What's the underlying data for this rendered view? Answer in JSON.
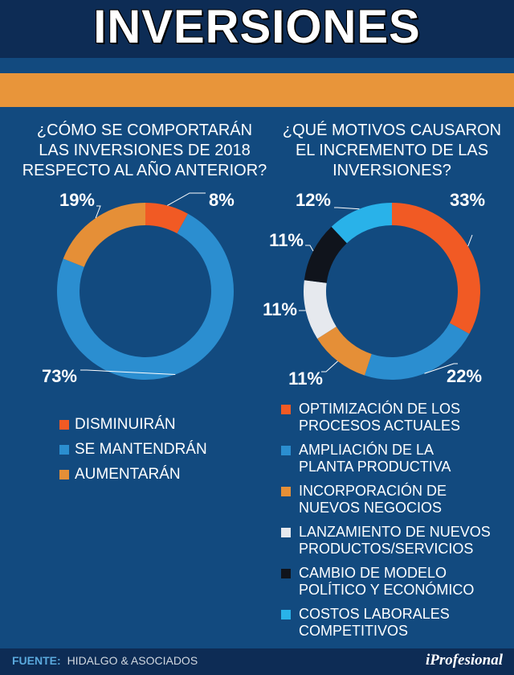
{
  "title": "INVERSIONES",
  "colors": {
    "orange_red": "#f15a24",
    "blue": "#2b8ed0",
    "orange": "#e58f37",
    "light_gray": "#e6e9ee",
    "black": "#10141c",
    "cyan": "#29b2e9",
    "background": "#124a7f",
    "band": "#e8953a"
  },
  "chart_data": [
    {
      "type": "pie",
      "question_lines": [
        "¿CÓMO SE COMPORTARÁN",
        "LAS INVERSIONES DE 2018",
        "RESPECTO AL AÑO ANTERIOR?"
      ],
      "series": [
        {
          "name": "DISMINUIRÁN",
          "value": 8,
          "label": "8%",
          "color": "#f15a24"
        },
        {
          "name": "SE MANTENDRÁN",
          "value": 73,
          "label": "73%",
          "color": "#2b8ed0"
        },
        {
          "name": "AUMENTARÁN",
          "value": 19,
          "label": "19%",
          "color": "#e58f37"
        }
      ]
    },
    {
      "type": "pie",
      "question_lines": [
        "¿QUÉ MOTIVOS CAUSARON",
        "EL INCREMENTO DE LAS",
        "INVERSIONES?"
      ],
      "series": [
        {
          "name_lines": [
            "OPTIMIZACIÓN DE LOS",
            "PROCESOS ACTUALES"
          ],
          "value": 33,
          "label": "33%",
          "color": "#f15a24"
        },
        {
          "name_lines": [
            "AMPLIACIÓN DE LA",
            "PLANTA PRODUCTIVA"
          ],
          "value": 22,
          "label": "22%",
          "color": "#2b8ed0"
        },
        {
          "name_lines": [
            "INCORPORACIÓN DE",
            "NUEVOS NEGOCIOS"
          ],
          "value": 11,
          "label": "11%",
          "color": "#e58f37"
        },
        {
          "name_lines": [
            "LANZAMIENTO DE NUEVOS",
            "PRODUCTOS/SERVICIOS"
          ],
          "value": 11,
          "label": "11%",
          "color": "#e6e9ee"
        },
        {
          "name_lines": [
            "CAMBIO DE MODELO",
            "POLÍTICO Y ECONÓMICO"
          ],
          "value": 11,
          "label": "11%",
          "color": "#10141c"
        },
        {
          "name_lines": [
            "COSTOS LABORALES",
            "COMPETITIVOS"
          ],
          "value": 12,
          "label": "12%",
          "color": "#29b2e9"
        }
      ]
    }
  ],
  "footer": {
    "source_label": "FUENTE:",
    "source_value": "HIDALGO & ASOCIADOS",
    "brand": "iProfesional"
  }
}
